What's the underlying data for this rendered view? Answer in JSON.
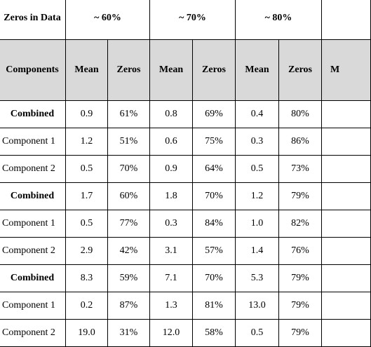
{
  "header": {
    "zeros_in_data": "Zeros in Data",
    "groups": [
      "~ 60%",
      "~ 70%",
      "~ 80%"
    ],
    "components_label": "Components",
    "mean_label": "Mean",
    "zeros_label": "Zeros",
    "extra_label": "M"
  },
  "rows": [
    {
      "label": "Combined",
      "g60": {
        "mean": "0.9",
        "zeros": "61%"
      },
      "g70": {
        "mean": "0.8",
        "zeros": "69%"
      },
      "g80": {
        "mean": "0.4",
        "zeros": "80%"
      }
    },
    {
      "label": "Component 1",
      "g60": {
        "mean": "1.2",
        "zeros": "51%"
      },
      "g70": {
        "mean": "0.6",
        "zeros": "75%"
      },
      "g80": {
        "mean": "0.3",
        "zeros": "86%"
      }
    },
    {
      "label": "Component 2",
      "g60": {
        "mean": "0.5",
        "zeros": "70%"
      },
      "g70": {
        "mean": "0.9",
        "zeros": "64%"
      },
      "g80": {
        "mean": "0.5",
        "zeros": "73%"
      }
    },
    {
      "label": "Combined",
      "g60": {
        "mean": "1.7",
        "zeros": "60%"
      },
      "g70": {
        "mean": "1.8",
        "zeros": "70%"
      },
      "g80": {
        "mean": "1.2",
        "zeros": "79%"
      }
    },
    {
      "label": "Component 1",
      "g60": {
        "mean": "0.5",
        "zeros": "77%"
      },
      "g70": {
        "mean": "0.3",
        "zeros": "84%"
      },
      "g80": {
        "mean": "1.0",
        "zeros": "82%"
      }
    },
    {
      "label": "Component 2",
      "g60": {
        "mean": "2.9",
        "zeros": "42%"
      },
      "g70": {
        "mean": "3.1",
        "zeros": "57%"
      },
      "g80": {
        "mean": "1.4",
        "zeros": "76%"
      }
    },
    {
      "label": "Combined",
      "g60": {
        "mean": "8.3",
        "zeros": "59%"
      },
      "g70": {
        "mean": "7.1",
        "zeros": "70%"
      },
      "g80": {
        "mean": "5.3",
        "zeros": "79%"
      }
    },
    {
      "label": "Component 1",
      "g60": {
        "mean": "0.2",
        "zeros": "87%"
      },
      "g70": {
        "mean": "1.3",
        "zeros": "81%"
      },
      "g80": {
        "mean": "13.0",
        "zeros": "79%"
      }
    },
    {
      "label": "Component 2",
      "g60": {
        "mean": "19.0",
        "zeros": "31%"
      },
      "g70": {
        "mean": "12.0",
        "zeros": "58%"
      },
      "g80": {
        "mean": "0.5",
        "zeros": "79%"
      }
    }
  ]
}
